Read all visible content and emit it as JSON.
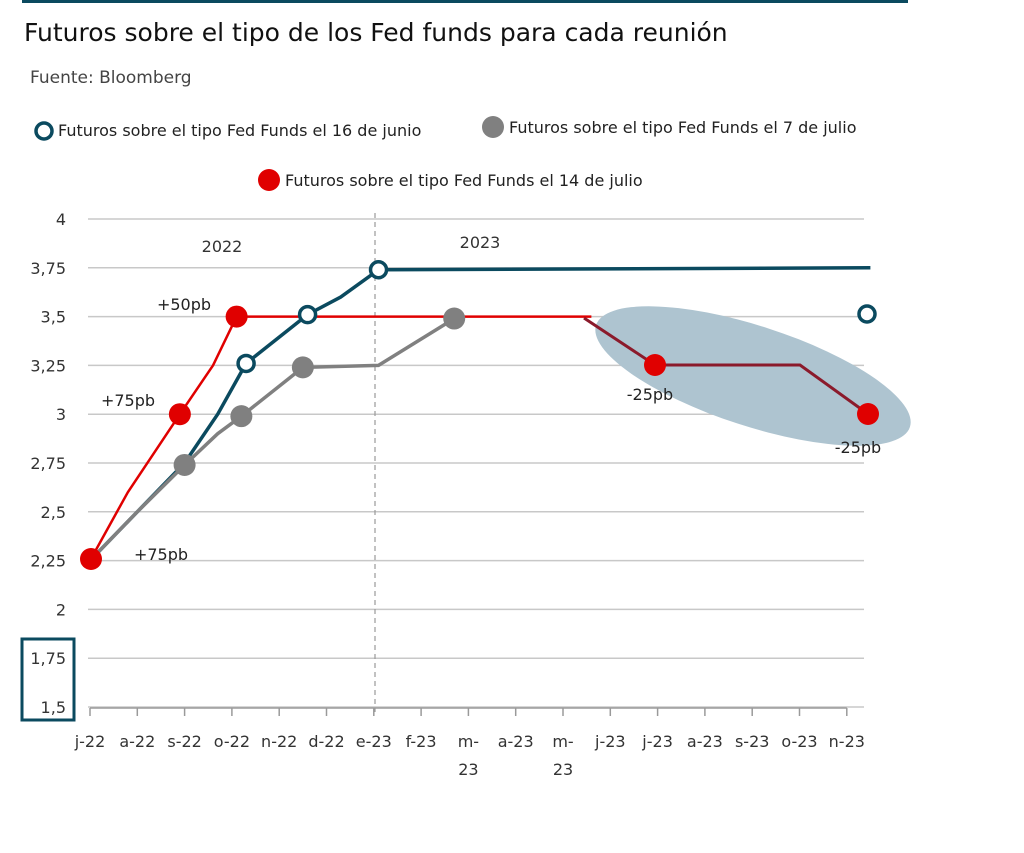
{
  "title": "Futuros sobre el tipo de los Fed funds para cada reunión",
  "subtitle": "Fuente: Bloomberg",
  "colors": {
    "s1": "#0b4a5f",
    "s2": "#808080",
    "s3": "#e00000",
    "s3_late": "#8b1a2b",
    "grid": "#c8c8c8",
    "highlight": "#aec4d0"
  },
  "chart_data": {
    "type": "line",
    "categories": [
      "j-22",
      "a-22",
      "s-22",
      "o-22",
      "n-22",
      "d-22",
      "e-23",
      "f-23",
      "m-\n23",
      "a-23",
      "m-\n23",
      "j-23",
      "j-23",
      "a-23",
      "s-23",
      "o-23",
      "n-23"
    ],
    "ylim": [
      1.5,
      4
    ],
    "yticks": [
      "4",
      "3,75",
      "3,5",
      "3,25",
      "3",
      "2,75",
      "2,5",
      "2,25",
      "2",
      "1,75",
      "1,5"
    ],
    "ytick_values": [
      4,
      3.75,
      3.5,
      3.25,
      3,
      2.75,
      2.5,
      2.25,
      2,
      1.75,
      1.5
    ],
    "year_labels": [
      "2022",
      "2023"
    ],
    "series": [
      {
        "name": "Futuros sobre el tipo Fed Funds el 16 de junio",
        "x": [
          0,
          1,
          2,
          2.7,
          3.3,
          4.6,
          5.3,
          6.1,
          16.5
        ],
        "y": [
          2.25,
          2.5,
          2.75,
          3.0,
          3.26,
          3.51,
          3.6,
          3.74,
          3.75
        ],
        "markers": [
          [
            3.3,
            3.26
          ],
          [
            4.6,
            3.51
          ],
          [
            6.1,
            3.74
          ]
        ]
      },
      {
        "name": "Futuros sobre el tipo Fed Funds el 7 de julio",
        "x": [
          0,
          1,
          2,
          2.7,
          3.2,
          4.5,
          6.1,
          7.7
        ],
        "y": [
          2.25,
          2.5,
          2.74,
          2.9,
          2.99,
          3.24,
          3.25,
          3.49
        ],
        "markers": [
          [
            2,
            2.74
          ],
          [
            3.2,
            2.99
          ],
          [
            4.5,
            3.24
          ],
          [
            7.7,
            3.49
          ]
        ]
      },
      {
        "name": "Futuros sobre el tipo Fed Funds el 14 de julio",
        "x": [
          0,
          0.8,
          1.9,
          2.6,
          3.1,
          10.6
        ],
        "y": [
          2.25,
          2.6,
          3.0,
          3.25,
          3.5,
          3.5
        ],
        "markers": [
          [
            1.9,
            3.0
          ],
          [
            3.1,
            3.5
          ]
        ]
      }
    ],
    "annotations": [
      "+50pb",
      "+75pb",
      "+75pb",
      "-25pb",
      "-25pb"
    ],
    "legend_position": "top"
  }
}
